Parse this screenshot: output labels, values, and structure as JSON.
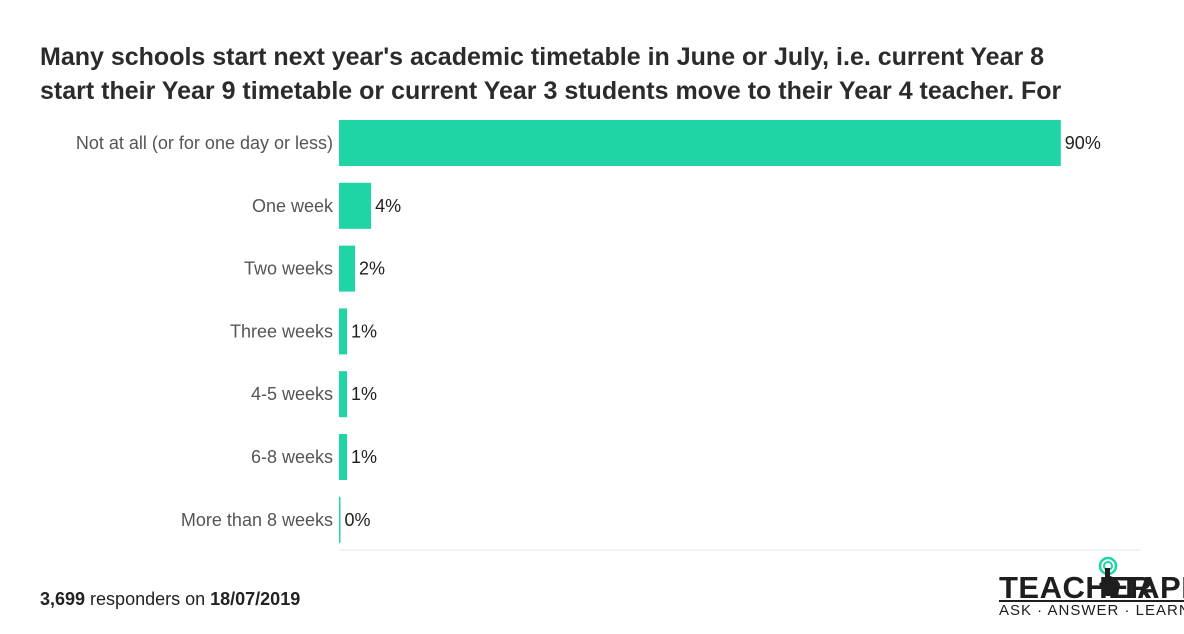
{
  "title_lines": [
    "Many schools start next year's academic timetable in June or July, i.e. current Year 8",
    "start their Year 9 timetable or current Year 3 students move to their Year 4 teacher. For"
  ],
  "footer": {
    "count": "3,699",
    "middle": " responders on ",
    "date": "18/07/2019"
  },
  "logo": {
    "word_left": "TEACHER",
    "word_right": "TAPP",
    "tagline": "ASK · ANSWER · LEARN",
    "icon": "hand-pointer-icon"
  },
  "colors": {
    "bar": "#1fd4a5",
    "axis": "#e5e5e5",
    "label": "#555555",
    "value": "#1e1e1e"
  },
  "chart_data": {
    "type": "bar",
    "orientation": "horizontal",
    "categories": [
      "Not at all (or for one day or less)",
      "One week",
      "Two weeks",
      "Three weeks",
      "4-5 weeks",
      "6-8 weeks",
      "More than 8 weeks"
    ],
    "values": [
      90,
      4,
      2,
      1,
      1,
      1,
      0
    ],
    "value_labels": [
      "90%",
      "4%",
      "2%",
      "1%",
      "1%",
      "1%",
      "0%"
    ],
    "xlim": [
      0,
      100
    ],
    "grid": false
  }
}
